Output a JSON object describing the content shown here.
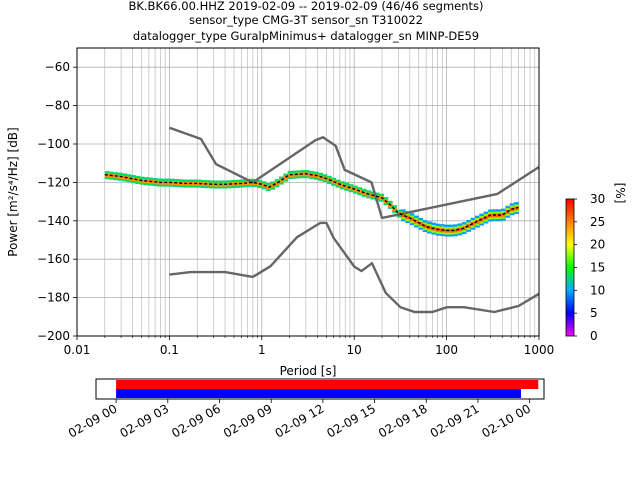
{
  "title": {
    "line1": "BK.BK66.00.HHZ   2019-02-09 -- 2019-02-09  (46/46 segments)",
    "line2": "sensor_type CMG-3T sensor_sn T310022",
    "line3": "datalogger_type GuralpMinimus+ datalogger_sn MINP-DE59"
  },
  "chart_data": [
    {
      "type": "heatmap",
      "name": "ppsd",
      "xlabel": "Period [s]",
      "ylabel": "Power [m²/s⁴/Hz] [dB]",
      "xscale": "log",
      "xlim": [
        0.01,
        1000
      ],
      "ylim": [
        -200,
        -50
      ],
      "x_ticks": [
        0.01,
        0.1,
        1,
        10,
        100,
        1000
      ],
      "x_tick_labels": [
        "0.01",
        "0.1",
        "1",
        "10",
        "100",
        "1000"
      ],
      "y_ticks": [
        -60,
        -80,
        -100,
        -120,
        -140,
        -160,
        -180,
        -200
      ],
      "y_tick_labels": [
        "−60",
        "−80",
        "−100",
        "−120",
        "−140",
        "−160",
        "−180",
        "−200"
      ],
      "grid": true,
      "colorbar": {
        "label": "[%]",
        "range": [
          0,
          30
        ],
        "ticks": [
          0,
          5,
          10,
          15,
          20,
          25,
          30
        ],
        "colors": [
          "#ff00ff",
          "#0000ff",
          "#00aaff",
          "#00ff00",
          "#ffff00",
          "#ff8000",
          "#ff0000"
        ]
      },
      "nhnm": {
        "period": [
          0.1,
          0.22,
          0.32,
          0.8,
          3.8,
          4.6,
          6.3,
          7.9,
          15.4,
          20,
          354.8,
          1000
        ],
        "power": [
          -91.5,
          -97.4,
          -110.5,
          -120,
          -98,
          -96.5,
          -101,
          -113.5,
          -120,
          -138.5,
          -126,
          -112
        ]
      },
      "nlnm": {
        "period": [
          0.1,
          0.17,
          0.4,
          0.8,
          1.24,
          2.4,
          4.3,
          5,
          6,
          10,
          12,
          15.6,
          21.9,
          31.6,
          45,
          70,
          101,
          154,
          328,
          600,
          1000
        ],
        "power": [
          -168,
          -166.7,
          -166.7,
          -169.2,
          -163.7,
          -148.6,
          -141.1,
          -141.1,
          -149,
          -163.8,
          -166.2,
          -162.1,
          -177.5,
          -185,
          -187.5,
          -187.5,
          -185,
          -185,
          -187.5,
          -184.4,
          -178
        ]
      },
      "mode": {
        "period": [
          0.02,
          0.03,
          0.05,
          0.08,
          0.1,
          0.15,
          0.2,
          0.3,
          0.4,
          0.6,
          0.8,
          1.0,
          1.2,
          1.5,
          2,
          3,
          4,
          5,
          7,
          10,
          14,
          20,
          25,
          30,
          40,
          50,
          60,
          80,
          100,
          120,
          150,
          200,
          300,
          400,
          500,
          600
        ],
        "power": [
          -116,
          -117,
          -119,
          -120,
          -120,
          -120.5,
          -120.5,
          -121,
          -121,
          -120.5,
          -120,
          -121,
          -122.5,
          -120,
          -116,
          -115.5,
          -116.5,
          -118,
          -121,
          -123.5,
          -126,
          -128,
          -132,
          -136,
          -138.5,
          -141,
          -143,
          -144.5,
          -145,
          -145,
          -144,
          -141,
          -137,
          -137,
          -134,
          -133
        ]
      }
    },
    {
      "type": "timeline",
      "name": "coverage",
      "x_ticks": [
        "2019-02-09T00:00",
        "2019-02-09T03:00",
        "2019-02-09T06:00",
        "2019-02-09T09:00",
        "2019-02-09T12:00",
        "2019-02-09T15:00",
        "2019-02-09T18:00",
        "2019-02-09T21:00",
        "2019-02-10T00:00"
      ],
      "x_tick_labels": [
        "02-09 00",
        "02-09 03",
        "02-09 06",
        "02-09 09",
        "02-09 12",
        "02-09 15",
        "02-09 18",
        "02-09 21",
        "02-10 00"
      ],
      "xlim": [
        "2019-02-08T22:50",
        "2019-02-10T00:50"
      ],
      "bars": [
        {
          "start": "2019-02-09T00:00",
          "end": "2019-02-10T00:30",
          "color": "#ff0000"
        },
        {
          "start": "2019-02-09T00:00",
          "end": "2019-02-09T23:30",
          "color": "#0000ff"
        }
      ]
    }
  ]
}
